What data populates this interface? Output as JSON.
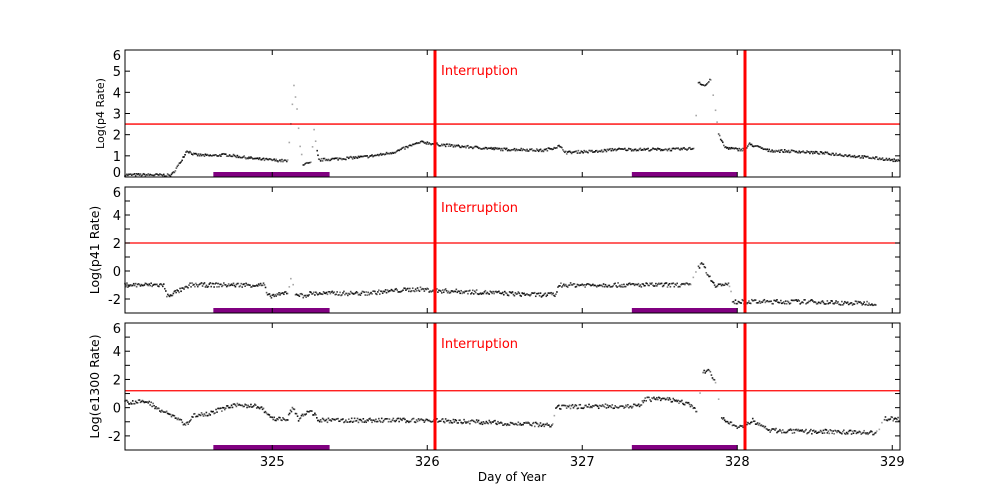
{
  "chart_data": [
    {
      "type": "scatter",
      "ylabel": "Log(p4 Rate)",
      "xlim": [
        324.05,
        329.05
      ],
      "ylim": [
        0,
        6
      ],
      "yticks": [
        0,
        1,
        2,
        3,
        4,
        5,
        6
      ],
      "ytick_labels": [
        "0",
        "1",
        "2",
        "3",
        "4",
        "5",
        "6"
      ],
      "threshold": 2.5,
      "annotation": "Interruption",
      "interruptions": [
        326.05,
        328.05
      ],
      "shaded_intervals": [
        [
          324.62,
          325.37
        ],
        [
          327.32,
          328.0
        ]
      ],
      "points": [
        [
          324.05,
          0.1
        ],
        [
          324.2,
          0.1
        ],
        [
          324.35,
          0.08
        ],
        [
          324.4,
          0.6
        ],
        [
          324.45,
          1.25
        ],
        [
          324.5,
          1.05
        ],
        [
          324.6,
          1.0
        ],
        [
          324.7,
          1.05
        ],
        [
          324.8,
          0.95
        ],
        [
          324.9,
          0.85
        ],
        [
          325.0,
          0.8
        ],
        [
          325.1,
          0.75
        ],
        [
          325.12,
          2.5
        ],
        [
          325.14,
          4.3
        ],
        [
          325.16,
          3.2
        ],
        [
          325.18,
          1.5
        ],
        [
          325.2,
          0.6
        ],
        [
          325.25,
          0.65
        ],
        [
          325.27,
          2.2
        ],
        [
          325.29,
          1.2
        ],
        [
          325.3,
          0.8
        ],
        [
          325.4,
          0.85
        ],
        [
          325.5,
          0.9
        ],
        [
          325.6,
          0.95
        ],
        [
          325.7,
          1.05
        ],
        [
          325.8,
          1.2
        ],
        [
          325.9,
          1.5
        ],
        [
          325.97,
          1.65
        ],
        [
          326.05,
          1.55
        ],
        [
          326.2,
          1.45
        ],
        [
          326.3,
          1.4
        ],
        [
          326.5,
          1.3
        ],
        [
          326.6,
          1.3
        ],
        [
          326.75,
          1.25
        ],
        [
          326.85,
          1.45
        ],
        [
          326.9,
          1.15
        ],
        [
          327.0,
          1.2
        ],
        [
          327.1,
          1.2
        ],
        [
          327.2,
          1.3
        ],
        [
          327.4,
          1.3
        ],
        [
          327.6,
          1.3
        ],
        [
          327.72,
          1.35
        ],
        [
          327.75,
          4.5
        ],
        [
          327.79,
          4.3
        ],
        [
          327.83,
          4.6
        ],
        [
          327.86,
          3.2
        ],
        [
          327.88,
          2.0
        ],
        [
          327.92,
          1.4
        ],
        [
          328.0,
          1.3
        ],
        [
          328.05,
          1.3
        ],
        [
          328.08,
          1.55
        ],
        [
          328.2,
          1.25
        ],
        [
          328.4,
          1.2
        ],
        [
          328.6,
          1.1
        ],
        [
          328.8,
          0.95
        ],
        [
          328.95,
          0.85
        ],
        [
          329.05,
          0.75
        ]
      ]
    },
    {
      "type": "scatter",
      "ylabel": "Log(p41 Rate)",
      "xlim": [
        324.05,
        329.05
      ],
      "ylim": [
        -3,
        6
      ],
      "yticks": [
        -2,
        0,
        2,
        4,
        6
      ],
      "ytick_labels": [
        "-2",
        "0",
        "2",
        "4",
        "6"
      ],
      "threshold": 2,
      "annotation": "Interruption",
      "interruptions": [
        326.05,
        328.05
      ],
      "shaded_intervals": [
        [
          324.62,
          325.37
        ],
        [
          327.32,
          328.0
        ]
      ],
      "points": [
        [
          324.05,
          -1.0
        ],
        [
          324.2,
          -1.0
        ],
        [
          324.3,
          -1.0
        ],
        [
          324.32,
          -1.8
        ],
        [
          324.38,
          -1.5
        ],
        [
          324.45,
          -1.2
        ],
        [
          324.47,
          -1.0
        ],
        [
          324.6,
          -1.0
        ],
        [
          324.8,
          -1.0
        ],
        [
          324.95,
          -1.0
        ],
        [
          324.97,
          -1.8
        ],
        [
          325.05,
          -1.7
        ],
        [
          325.1,
          -1.5
        ],
        [
          325.12,
          -0.6
        ],
        [
          325.15,
          -1.6
        ],
        [
          325.2,
          -1.8
        ],
        [
          325.25,
          -1.6
        ],
        [
          325.4,
          -1.6
        ],
        [
          325.6,
          -1.6
        ],
        [
          325.8,
          -1.4
        ],
        [
          325.95,
          -1.3
        ],
        [
          326.05,
          -1.4
        ],
        [
          326.3,
          -1.5
        ],
        [
          326.5,
          -1.6
        ],
        [
          326.7,
          -1.7
        ],
        [
          326.83,
          -1.7
        ],
        [
          326.85,
          -1.0
        ],
        [
          327.1,
          -1.0
        ],
        [
          327.4,
          -1.0
        ],
        [
          327.7,
          -1.0
        ],
        [
          327.75,
          0.2
        ],
        [
          327.77,
          0.7
        ],
        [
          327.8,
          0.0
        ],
        [
          327.83,
          -0.6
        ],
        [
          327.86,
          -1.0
        ],
        [
          327.95,
          -1.0
        ],
        [
          327.97,
          -2.2
        ],
        [
          328.1,
          -2.2
        ],
        [
          328.3,
          -2.2
        ],
        [
          328.5,
          -2.2
        ],
        [
          328.7,
          -2.3
        ],
        [
          328.9,
          -2.3
        ]
      ]
    },
    {
      "type": "scatter",
      "ylabel": "Log(e1300 Rate)",
      "xlabel": "Day of Year",
      "xlim": [
        324.05,
        329.05
      ],
      "ylim": [
        -3,
        6
      ],
      "xticks": [
        325,
        326,
        327,
        328,
        329
      ],
      "xtick_labels": [
        "325",
        "326",
        "327",
        "328",
        "329"
      ],
      "yticks": [
        -2,
        0,
        2,
        4,
        6
      ],
      "ytick_labels": [
        "-2",
        "0",
        "2",
        "4",
        "6"
      ],
      "threshold": 1.2,
      "annotation": "Interruption",
      "interruptions": [
        326.05,
        328.05
      ],
      "shaded_intervals": [
        [
          324.62,
          325.37
        ],
        [
          327.32,
          328.0
        ]
      ],
      "points": [
        [
          324.05,
          0.4
        ],
        [
          324.2,
          0.4
        ],
        [
          324.3,
          -0.3
        ],
        [
          324.4,
          -0.8
        ],
        [
          324.44,
          -1.3
        ],
        [
          324.5,
          -0.5
        ],
        [
          324.6,
          -0.4
        ],
        [
          324.7,
          0.0
        ],
        [
          324.8,
          0.2
        ],
        [
          324.9,
          0.1
        ],
        [
          324.95,
          -0.2
        ],
        [
          325.0,
          -0.8
        ],
        [
          325.1,
          -0.8
        ],
        [
          325.13,
          0.0
        ],
        [
          325.17,
          -0.8
        ],
        [
          325.25,
          -0.2
        ],
        [
          325.3,
          -0.9
        ],
        [
          325.5,
          -0.9
        ],
        [
          325.8,
          -0.9
        ],
        [
          326.0,
          -0.9
        ],
        [
          326.3,
          -1.0
        ],
        [
          326.5,
          -1.1
        ],
        [
          326.7,
          -1.2
        ],
        [
          326.81,
          -1.3
        ],
        [
          326.83,
          0.0
        ],
        [
          327.0,
          0.1
        ],
        [
          327.2,
          0.1
        ],
        [
          327.37,
          0.1
        ],
        [
          327.4,
          0.6
        ],
        [
          327.55,
          0.6
        ],
        [
          327.68,
          0.3
        ],
        [
          327.74,
          -0.3
        ],
        [
          327.78,
          2.6
        ],
        [
          327.82,
          2.6
        ],
        [
          327.86,
          1.8
        ],
        [
          327.9,
          -0.8
        ],
        [
          328.0,
          -1.4
        ],
        [
          328.05,
          -1.2
        ],
        [
          328.1,
          -0.9
        ],
        [
          328.2,
          -1.6
        ],
        [
          328.4,
          -1.7
        ],
        [
          328.6,
          -1.7
        ],
        [
          328.9,
          -1.8
        ],
        [
          328.95,
          -0.8
        ],
        [
          329.05,
          -0.8
        ]
      ]
    }
  ],
  "colors": {
    "threshold": "#ff0000",
    "interruption": "#ff0000",
    "shaded": "#800080",
    "points": "#000000"
  }
}
